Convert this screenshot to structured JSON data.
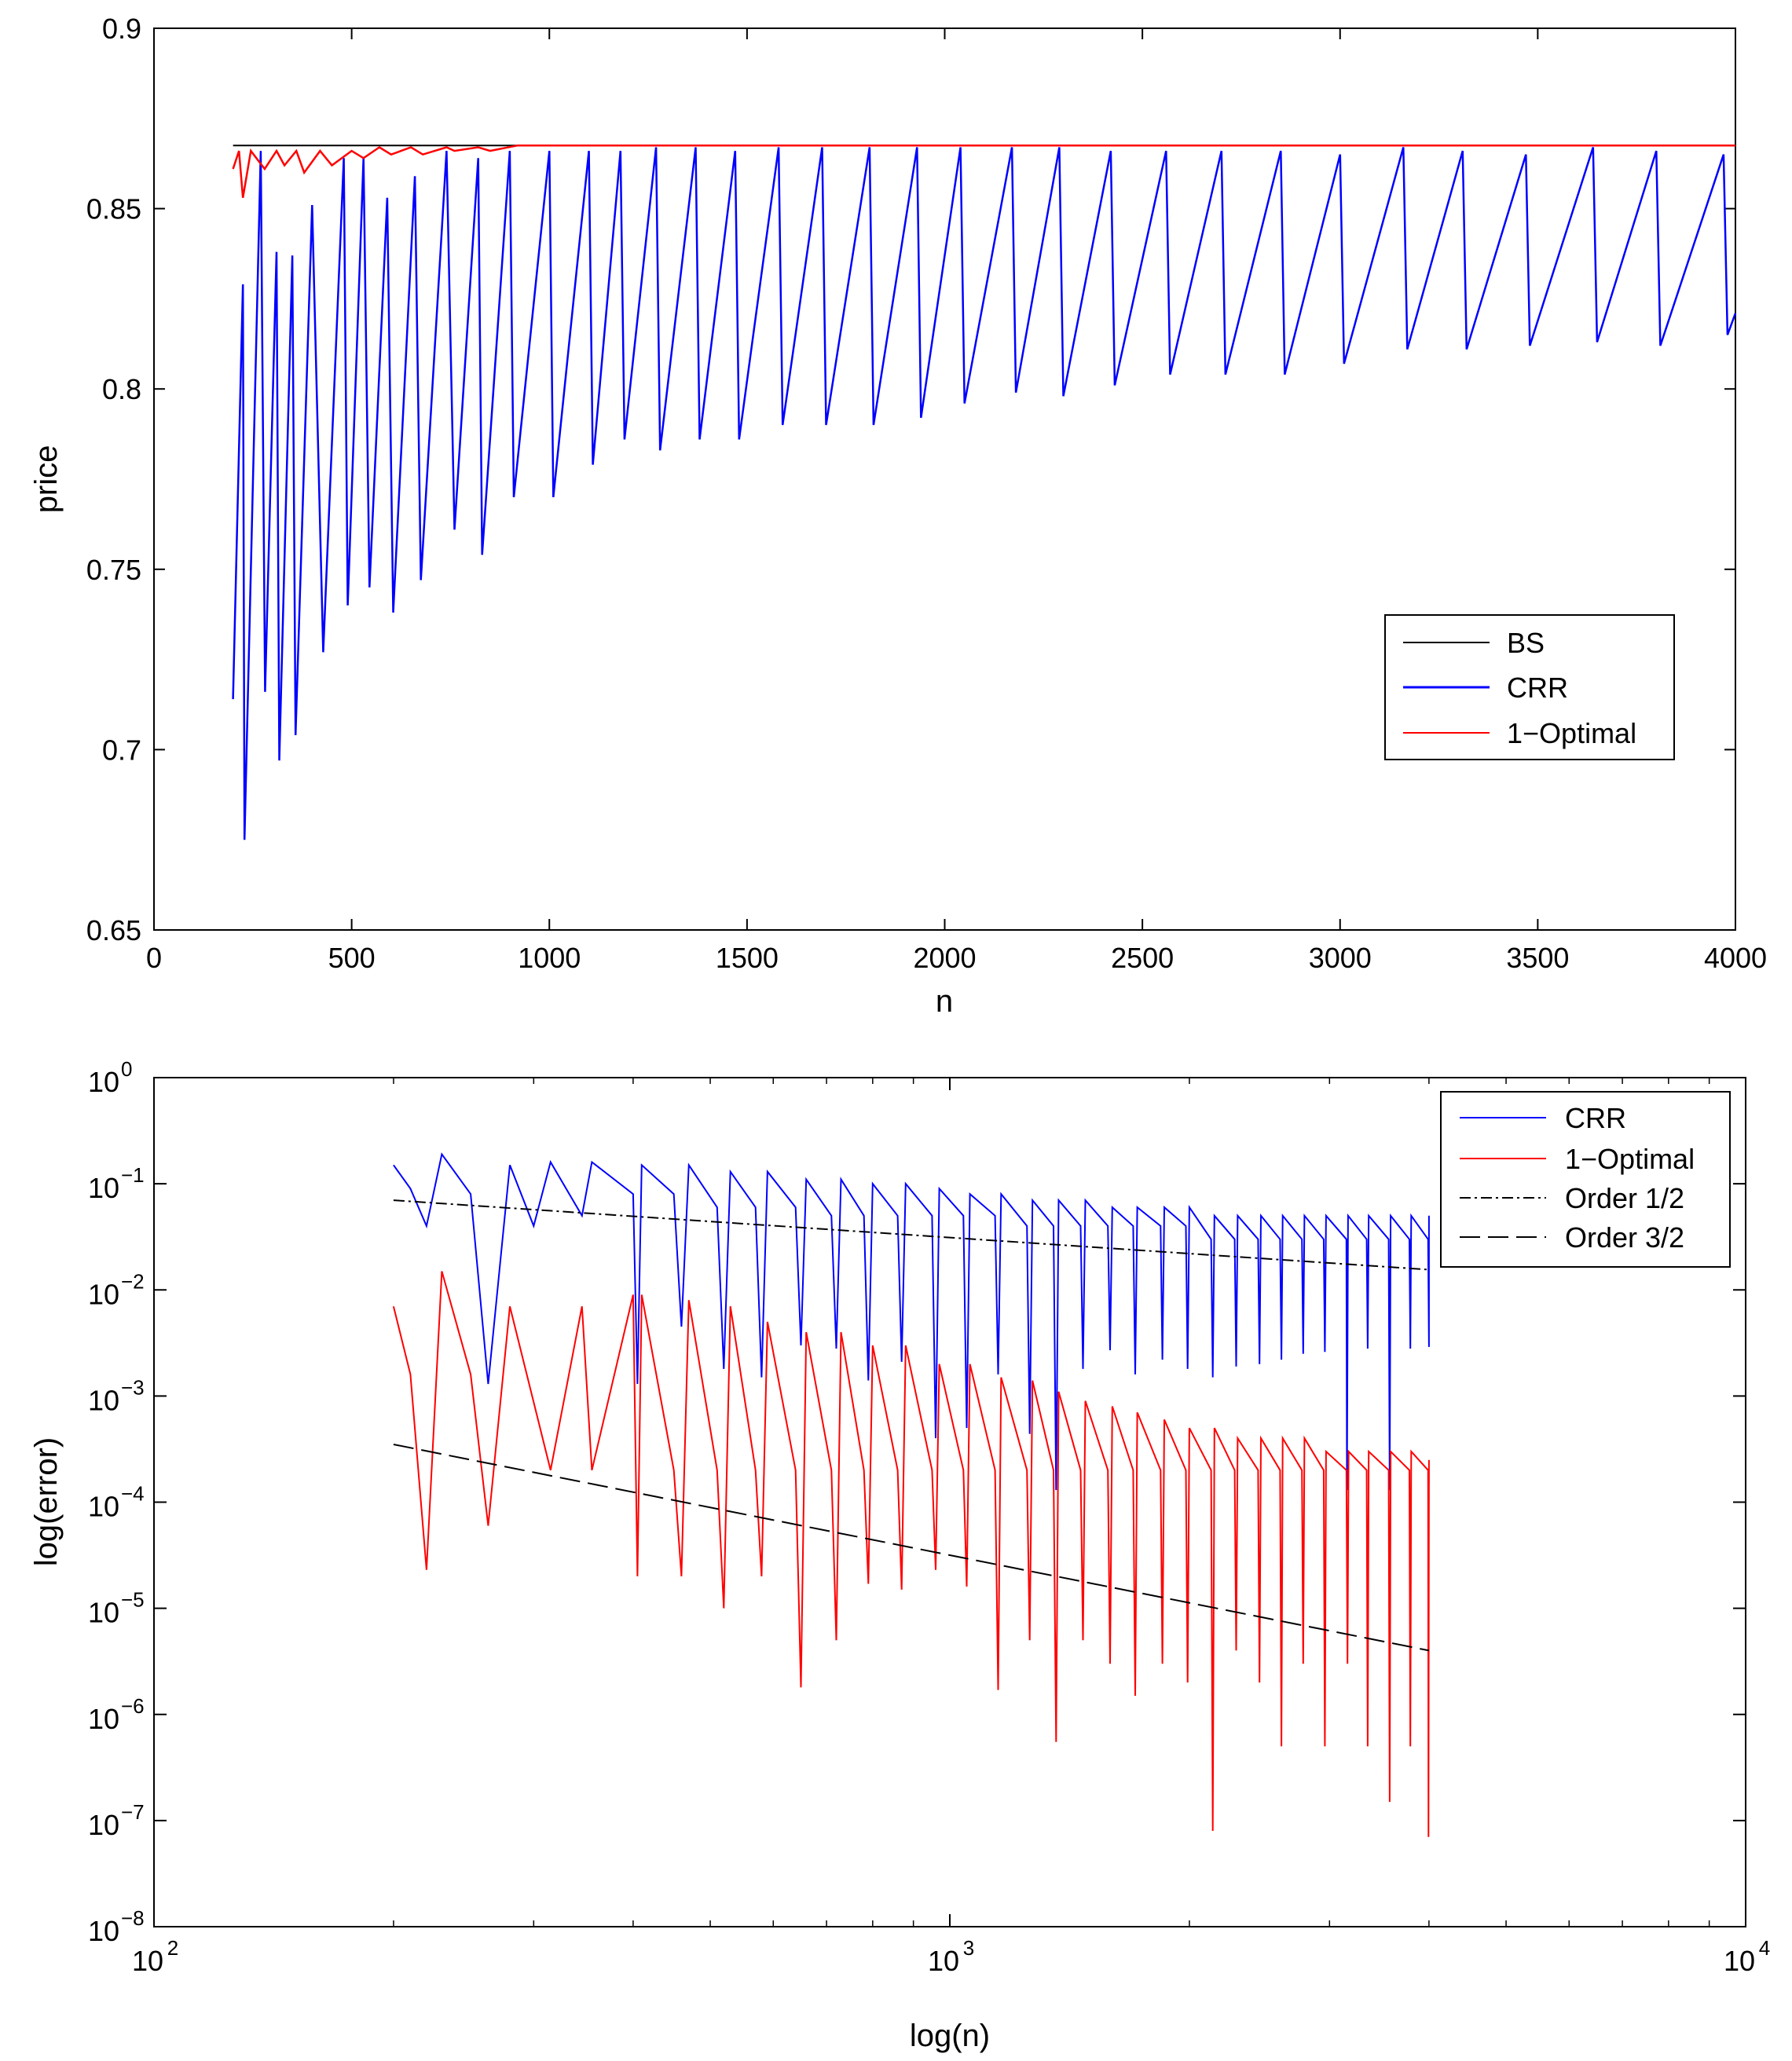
{
  "colors": {
    "bs": "#000000",
    "crr": "#0000ff",
    "optimal": "#ff0000",
    "ref": "#000000",
    "axes": "#000000",
    "background": "#ffffff"
  },
  "chart_data": [
    {
      "type": "line",
      "title": "",
      "xlabel": "n",
      "ylabel": "price",
      "xlim": [
        0,
        4000
      ],
      "ylim": [
        0.65,
        0.9
      ],
      "x_scale": "linear",
      "y_scale": "linear",
      "grid": false,
      "legend_position": "right",
      "xticks": [
        0,
        500,
        1000,
        1500,
        2000,
        2500,
        3000,
        3500,
        4000
      ],
      "xtick_labels": [
        "0",
        "500",
        "1000",
        "1500",
        "2000",
        "2500",
        "3000",
        "3500",
        "4000"
      ],
      "yticks": [
        0.65,
        0.7,
        0.75,
        0.8,
        0.85,
        0.9
      ],
      "ytick_labels": [
        "0.65",
        "0.7",
        "0.75",
        "0.8",
        "0.85",
        "0.9"
      ],
      "bs_value": 0.8675,
      "crr_dips": [
        [
          200,
          0.714
        ],
        [
          225,
          0.829
        ],
        [
          229,
          0.675
        ],
        [
          270,
          0.866
        ],
        [
          281,
          0.716
        ],
        [
          310,
          0.838
        ],
        [
          317,
          0.697
        ],
        [
          350,
          0.837
        ],
        [
          358,
          0.704
        ],
        [
          400,
          0.851
        ],
        [
          428,
          0.727
        ],
        [
          480,
          0.864
        ],
        [
          490,
          0.74
        ],
        [
          530,
          0.864
        ],
        [
          545,
          0.745
        ],
        [
          590,
          0.853
        ],
        [
          605,
          0.738
        ],
        [
          660,
          0.859
        ],
        [
          675,
          0.747
        ],
        [
          740,
          0.866
        ],
        [
          760,
          0.761
        ],
        [
          820,
          0.864
        ],
        [
          830,
          0.754
        ],
        [
          900,
          0.866
        ],
        [
          910,
          0.77
        ],
        [
          1000,
          0.866
        ],
        [
          1010,
          0.77
        ],
        [
          1100,
          0.866
        ],
        [
          1110,
          0.779
        ],
        [
          1180,
          0.866
        ],
        [
          1190,
          0.786
        ],
        [
          1270,
          0.867
        ],
        [
          1280,
          0.783
        ],
        [
          1370,
          0.867
        ],
        [
          1380,
          0.786
        ],
        [
          1470,
          0.866
        ],
        [
          1480,
          0.786
        ],
        [
          1580,
          0.867
        ],
        [
          1590,
          0.79
        ],
        [
          1690,
          0.867
        ],
        [
          1700,
          0.79
        ],
        [
          1810,
          0.867
        ],
        [
          1820,
          0.79
        ],
        [
          1930,
          0.867
        ],
        [
          1940,
          0.792
        ],
        [
          2040,
          0.867
        ],
        [
          2050,
          0.796
        ],
        [
          2170,
          0.867
        ],
        [
          2180,
          0.799
        ],
        [
          2290,
          0.867
        ],
        [
          2300,
          0.798
        ],
        [
          2420,
          0.866
        ],
        [
          2430,
          0.801
        ],
        [
          2560,
          0.866
        ],
        [
          2570,
          0.804
        ],
        [
          2700,
          0.866
        ],
        [
          2710,
          0.804
        ],
        [
          2850,
          0.866
        ],
        [
          2860,
          0.804
        ],
        [
          3000,
          0.865
        ],
        [
          3010,
          0.807
        ],
        [
          3160,
          0.867
        ],
        [
          3170,
          0.811
        ],
        [
          3310,
          0.866
        ],
        [
          3320,
          0.811
        ],
        [
          3470,
          0.865
        ],
        [
          3480,
          0.812
        ],
        [
          3640,
          0.867
        ],
        [
          3650,
          0.813
        ],
        [
          3800,
          0.866
        ],
        [
          3810,
          0.812
        ],
        [
          3970,
          0.865
        ],
        [
          3980,
          0.815
        ],
        [
          4000,
          0.821
        ]
      ],
      "optimal_dips": [
        [
          200,
          0.861
        ],
        [
          215,
          0.866
        ],
        [
          225,
          0.853
        ],
        [
          245,
          0.866
        ],
        [
          280,
          0.861
        ],
        [
          310,
          0.866
        ],
        [
          330,
          0.862
        ],
        [
          360,
          0.866
        ],
        [
          380,
          0.86
        ],
        [
          420,
          0.866
        ],
        [
          450,
          0.862
        ],
        [
          500,
          0.866
        ],
        [
          530,
          0.864
        ],
        [
          570,
          0.867
        ],
        [
          600,
          0.865
        ],
        [
          650,
          0.867
        ],
        [
          680,
          0.865
        ],
        [
          740,
          0.867
        ],
        [
          760,
          0.866
        ],
        [
          820,
          0.867
        ],
        [
          850,
          0.866
        ],
        [
          920,
          0.8675
        ],
        [
          4000,
          0.8675
        ]
      ],
      "legend": [
        "BS",
        "CRR",
        "1−Optimal"
      ]
    },
    {
      "type": "line",
      "title": "",
      "xlabel": "log(n)",
      "ylabel": "log(error)",
      "xlim": [
        100,
        10000
      ],
      "ylim": [
        1e-08,
        1
      ],
      "x_scale": "log",
      "y_scale": "log",
      "grid": false,
      "legend_position": "top-right",
      "xtick_bases": [
        "10",
        "10",
        "10"
      ],
      "xtick_exponents": [
        "2",
        "3",
        "4"
      ],
      "ytick_bases": [
        "10",
        "10",
        "10",
        "10",
        "10",
        "10",
        "10",
        "10",
        "10"
      ],
      "ytick_exponents": [
        "0",
        "−1",
        "−2",
        "−3",
        "−4",
        "−5",
        "−6",
        "−7",
        "−8"
      ],
      "crr_error": [
        [
          200,
          0.15
        ],
        [
          210,
          0.09
        ],
        [
          220,
          0.04
        ],
        [
          230,
          0.19
        ],
        [
          250,
          0.08
        ],
        [
          263,
          0.0013
        ],
        [
          280,
          0.15
        ],
        [
          300,
          0.04
        ],
        [
          315,
          0.16
        ],
        [
          345,
          0.05
        ],
        [
          355,
          0.16
        ],
        [
          400,
          0.08
        ],
        [
          405,
          0.0013
        ],
        [
          410,
          0.15
        ],
        [
          450,
          0.08
        ],
        [
          460,
          0.0045
        ],
        [
          470,
          0.15
        ],
        [
          510,
          0.06
        ],
        [
          520,
          0.0018
        ],
        [
          530,
          0.13
        ],
        [
          570,
          0.06
        ],
        [
          580,
          0.0015
        ],
        [
          590,
          0.13
        ],
        [
          640,
          0.06
        ],
        [
          650,
          0.003
        ],
        [
          660,
          0.11
        ],
        [
          710,
          0.05
        ],
        [
          720,
          0.0028
        ],
        [
          730,
          0.11
        ],
        [
          780,
          0.05
        ],
        [
          790,
          0.0014
        ],
        [
          800,
          0.1
        ],
        [
          860,
          0.05
        ],
        [
          870,
          0.0021
        ],
        [
          880,
          0.1
        ],
        [
          950,
          0.05
        ],
        [
          960,
          0.0004
        ],
        [
          970,
          0.09
        ],
        [
          1040,
          0.05
        ],
        [
          1050,
          0.0005
        ],
        [
          1060,
          0.08
        ],
        [
          1140,
          0.05
        ],
        [
          1150,
          0.0016
        ],
        [
          1160,
          0.08
        ],
        [
          1250,
          0.04
        ],
        [
          1260,
          0.00044
        ],
        [
          1270,
          0.07
        ],
        [
          1350,
          0.04
        ],
        [
          1360,
          0.00013
        ],
        [
          1370,
          0.07
        ],
        [
          1460,
          0.04
        ],
        [
          1470,
          0.0018
        ],
        [
          1480,
          0.07
        ],
        [
          1580,
          0.04
        ],
        [
          1590,
          0.0027
        ],
        [
          1600,
          0.06
        ],
        [
          1700,
          0.04
        ],
        [
          1710,
          0.0016
        ],
        [
          1720,
          0.06
        ],
        [
          1840,
          0.04
        ],
        [
          1850,
          0.0022
        ],
        [
          1860,
          0.06
        ],
        [
          1980,
          0.04
        ],
        [
          1990,
          0.0018
        ],
        [
          2000,
          0.06
        ],
        [
          2130,
          0.03
        ],
        [
          2140,
          0.0015
        ],
        [
          2150,
          0.05
        ],
        [
          2280,
          0.03
        ],
        [
          2290,
          0.0019
        ],
        [
          2300,
          0.05
        ],
        [
          2440,
          0.03
        ],
        [
          2450,
          0.002
        ],
        [
          2460,
          0.05
        ],
        [
          2600,
          0.03
        ],
        [
          2610,
          0.0022
        ],
        [
          2620,
          0.05
        ],
        [
          2770,
          0.03
        ],
        [
          2780,
          0.0025
        ],
        [
          2790,
          0.05
        ],
        [
          2950,
          0.03
        ],
        [
          2960,
          0.0026
        ],
        [
          2970,
          0.05
        ],
        [
          3150,
          0.03
        ],
        [
          3155,
          0.00013
        ],
        [
          3165,
          0.05
        ],
        [
          3340,
          0.03
        ],
        [
          3350,
          0.0028
        ],
        [
          3360,
          0.05
        ],
        [
          3560,
          0.03
        ],
        [
          3570,
          0.00013
        ],
        [
          3580,
          0.05
        ],
        [
          3780,
          0.03
        ],
        [
          3790,
          0.0028
        ],
        [
          3800,
          0.05
        ],
        [
          3990,
          0.03
        ],
        [
          4000,
          0.0029
        ],
        [
          4000,
          0.05
        ]
      ],
      "optimal_error": [
        [
          200,
          0.007
        ],
        [
          210,
          0.0016
        ],
        [
          220,
          2.3e-05
        ],
        [
          230,
          0.015
        ],
        [
          250,
          0.0016
        ],
        [
          263,
          6e-05
        ],
        [
          280,
          0.007
        ],
        [
          315,
          0.0002
        ],
        [
          345,
          0.007
        ],
        [
          355,
          0.0002
        ],
        [
          400,
          0.009
        ],
        [
          405,
          2e-05
        ],
        [
          410,
          0.009
        ],
        [
          450,
          0.0002
        ],
        [
          460,
          2e-05
        ],
        [
          470,
          0.008
        ],
        [
          510,
          0.0002
        ],
        [
          520,
          1e-05
        ],
        [
          530,
          0.007
        ],
        [
          570,
          0.0002
        ],
        [
          580,
          2e-05
        ],
        [
          590,
          0.005
        ],
        [
          640,
          0.0002
        ],
        [
          650,
          1.8e-06
        ],
        [
          660,
          0.004
        ],
        [
          710,
          0.0002
        ],
        [
          720,
          5e-06
        ],
        [
          730,
          0.004
        ],
        [
          780,
          0.0002
        ],
        [
          790,
          1.7e-05
        ],
        [
          800,
          0.003
        ],
        [
          860,
          0.0002
        ],
        [
          870,
          1.5e-05
        ],
        [
          880,
          0.003
        ],
        [
          950,
          0.0002
        ],
        [
          960,
          2.3e-05
        ],
        [
          970,
          0.002
        ],
        [
          1040,
          0.0002
        ],
        [
          1050,
          1.6e-05
        ],
        [
          1060,
          0.002
        ],
        [
          1140,
          0.0002
        ],
        [
          1150,
          1.7e-06
        ],
        [
          1160,
          0.0015
        ],
        [
          1250,
          0.0002
        ],
        [
          1260,
          5e-06
        ],
        [
          1270,
          0.0014
        ],
        [
          1350,
          0.0002
        ],
        [
          1360,
          5.5e-07
        ],
        [
          1370,
          0.0011
        ],
        [
          1460,
          0.0002
        ],
        [
          1470,
          5e-06
        ],
        [
          1480,
          0.0009
        ],
        [
          1580,
          0.0002
        ],
        [
          1590,
          3e-06
        ],
        [
          1600,
          0.0008
        ],
        [
          1700,
          0.0002
        ],
        [
          1710,
          1.5e-06
        ],
        [
          1720,
          0.0007
        ],
        [
          1840,
          0.0002
        ],
        [
          1850,
          3e-06
        ],
        [
          1860,
          0.0006
        ],
        [
          1980,
          0.0002
        ],
        [
          1990,
          2e-06
        ],
        [
          2000,
          0.0005
        ],
        [
          2130,
          0.0002
        ],
        [
          2140,
          8e-08
        ],
        [
          2150,
          0.0005
        ],
        [
          2280,
          0.0002
        ],
        [
          2290,
          4e-06
        ],
        [
          2300,
          0.0004
        ],
        [
          2440,
          0.0002
        ],
        [
          2450,
          2e-06
        ],
        [
          2460,
          0.0004
        ],
        [
          2600,
          0.0002
        ],
        [
          2610,
          5e-07
        ],
        [
          2620,
          0.0004
        ],
        [
          2770,
          0.0002
        ],
        [
          2780,
          3e-06
        ],
        [
          2790,
          0.0004
        ],
        [
          2950,
          0.0002
        ],
        [
          2960,
          5e-07
        ],
        [
          2970,
          0.0003
        ],
        [
          3150,
          0.0002
        ],
        [
          3160,
          3e-06
        ],
        [
          3170,
          0.0003
        ],
        [
          3340,
          0.0002
        ],
        [
          3350,
          5e-07
        ],
        [
          3360,
          0.0003
        ],
        [
          3560,
          0.0002
        ],
        [
          3570,
          1.5e-07
        ],
        [
          3580,
          0.0003
        ],
        [
          3780,
          0.0002
        ],
        [
          3790,
          5e-07
        ],
        [
          3800,
          0.0003
        ],
        [
          3990,
          0.0002
        ],
        [
          3995,
          7e-08
        ],
        [
          4000,
          0.00025
        ],
        [
          4000,
          0.00015
        ]
      ],
      "order_half": [
        [
          200,
          0.07
        ],
        [
          4000,
          0.0155
        ]
      ],
      "order_three_halves": [
        [
          200,
          0.00035
        ],
        [
          4000,
          4e-06
        ]
      ],
      "legend": [
        "CRR",
        "1−Optimal",
        "Order 1/2",
        "Order 3/2"
      ]
    }
  ]
}
